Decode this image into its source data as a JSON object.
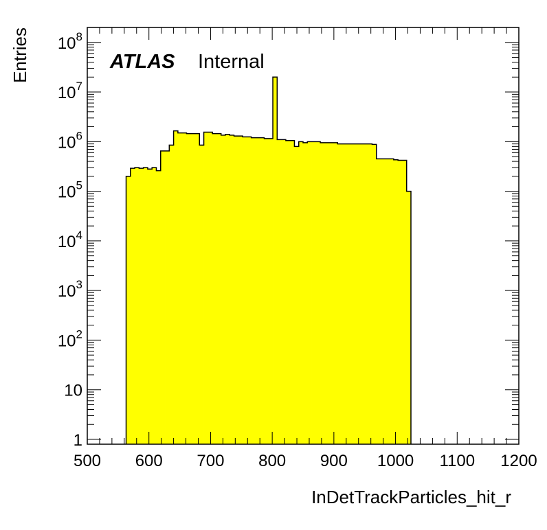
{
  "chart_data": {
    "type": "bar",
    "xlabel": "InDetTrackParticles_hit_r",
    "ylabel": "Entries",
    "log_y": true,
    "xlim": [
      500,
      1200
    ],
    "ylim": [
      0.8,
      200000000
    ],
    "x_ticks": [
      "500",
      "600",
      "700",
      "800",
      "900",
      "1000",
      "1100",
      "1200"
    ],
    "y_ticks": [
      {
        "base": "1",
        "exp": ""
      },
      {
        "base": "10",
        "exp": ""
      },
      {
        "base": "10",
        "exp": "2"
      },
      {
        "base": "10",
        "exp": "3"
      },
      {
        "base": "10",
        "exp": "4"
      },
      {
        "base": "10",
        "exp": "5"
      },
      {
        "base": "10",
        "exp": "6"
      },
      {
        "base": "10",
        "exp": "7"
      },
      {
        "base": "10",
        "exp": "8"
      }
    ],
    "fill_color": "#ffff00",
    "line_color": "#000000",
    "grid": false,
    "label": {
      "atlas": "ATLAS",
      "status": "Internal"
    },
    "bin_width": 7,
    "bin_start": 563,
    "values": [
      200000,
      290000,
      300000,
      290000,
      300000,
      280000,
      300000,
      260000,
      650000,
      650000,
      850000,
      1650000,
      1500000,
      1500000,
      1450000,
      1450000,
      1450000,
      850000,
      1550000,
      1550000,
      1450000,
      1450000,
      1350000,
      1400000,
      1350000,
      1300000,
      1300000,
      1250000,
      1250000,
      1200000,
      1200000,
      1200000,
      1150000,
      1150000,
      20000000,
      1100000,
      1100000,
      1050000,
      1050000,
      800000,
      1000000,
      950000,
      1000000,
      1000000,
      1000000,
      950000,
      950000,
      950000,
      950000,
      900000,
      900000,
      900000,
      900000,
      900000,
      900000,
      900000,
      900000,
      880000,
      450000,
      450000,
      450000,
      450000,
      430000,
      420000,
      420000,
      100000
    ]
  }
}
